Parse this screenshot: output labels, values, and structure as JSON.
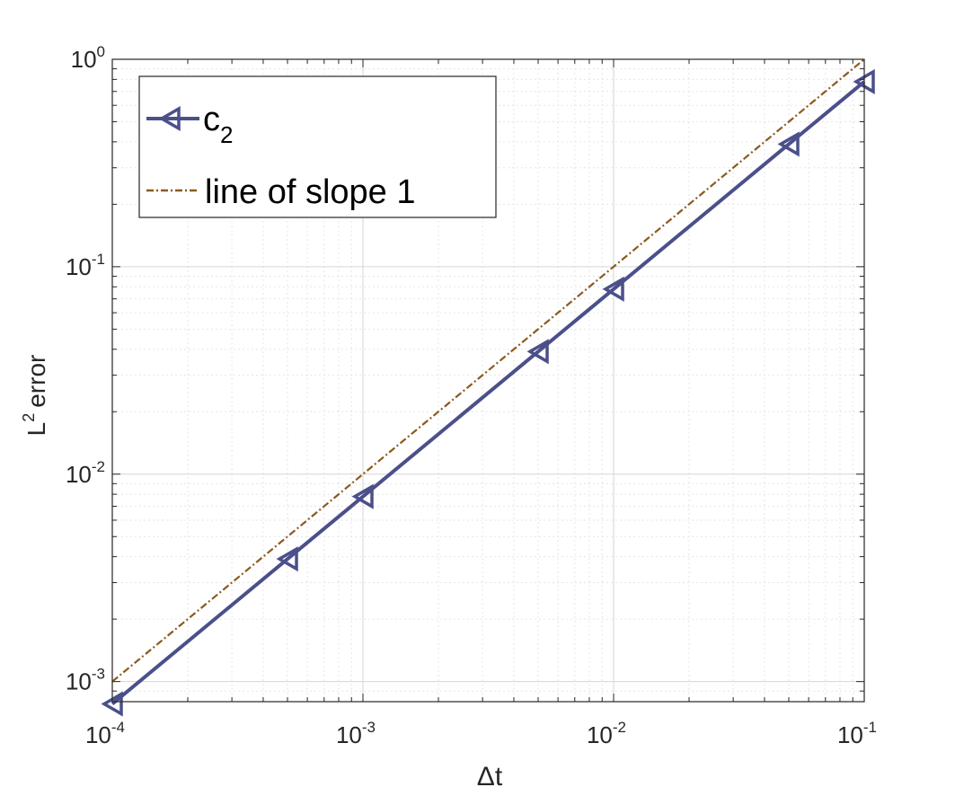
{
  "chart_data": {
    "type": "line",
    "xscale": "log",
    "yscale": "log",
    "xlim": [
      0.0001,
      0.1
    ],
    "ylim": [
      0.0008,
      1
    ],
    "grid": true,
    "xlabel": {
      "symbol": "Δ",
      "text": "t"
    },
    "ylabel": {
      "base": "L",
      "sup": "2",
      "text": "error"
    },
    "xticks": [
      {
        "value": 0.0001,
        "base": "10",
        "exp": "-4"
      },
      {
        "value": 0.001,
        "base": "10",
        "exp": "-3"
      },
      {
        "value": 0.01,
        "base": "10",
        "exp": "-2"
      },
      {
        "value": 0.1,
        "base": "10",
        "exp": "-1"
      }
    ],
    "yticks": [
      {
        "value": 0.001,
        "base": "10",
        "exp": "-3"
      },
      {
        "value": 0.01,
        "base": "10",
        "exp": "-2"
      },
      {
        "value": 0.1,
        "base": "10",
        "exp": "-1"
      },
      {
        "value": 1,
        "base": "10",
        "exp": "0"
      }
    ],
    "legend_position": "top-left",
    "series": [
      {
        "name": "c",
        "name_sub": "2",
        "color": "#4b4f8a",
        "line_style": "solid",
        "marker": "triangle-left",
        "x": [
          0.0001,
          0.0005,
          0.001,
          0.005,
          0.01,
          0.05,
          0.1
        ],
        "y": [
          0.00078,
          0.0039,
          0.0078,
          0.039,
          0.078,
          0.39,
          0.78
        ]
      },
      {
        "name": "line of slope 1",
        "color": "#8b5a1e",
        "line_style": "dash-dot",
        "marker": "none",
        "x": [
          0.0001,
          0.1
        ],
        "y": [
          0.001,
          1
        ]
      }
    ]
  }
}
